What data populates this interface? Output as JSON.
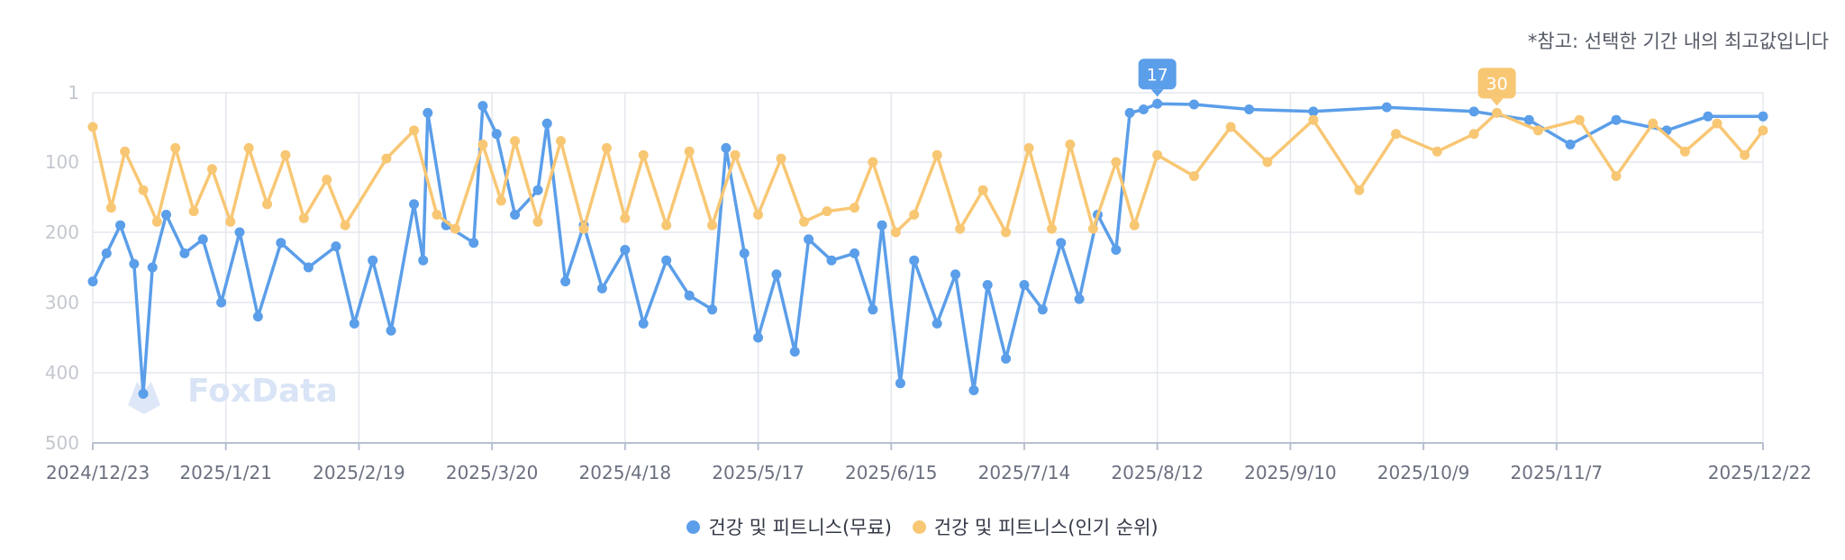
{
  "note": "*참고: 선택한 기간 내의 최고값입니다",
  "watermark": "FoxData",
  "colors": {
    "free": "#5b9ee9",
    "popular": "#f8c774",
    "grid": "#e4e7ed",
    "axis": "#b8c0d0"
  },
  "legend": {
    "free": "건강 및 피트니스(무료)",
    "popular": "건강 및 피트니스(인기 순위)"
  },
  "chart_data": {
    "type": "line",
    "y_axis": {
      "reversed": true,
      "range": [
        1,
        500
      ],
      "ticks": [
        "1",
        "100",
        "200",
        "300",
        "400",
        "500"
      ]
    },
    "x_labels": [
      "2024/12/23",
      "2025/1/21",
      "2025/2/19",
      "2025/3/20",
      "2025/4/18",
      "2025/5/17",
      "2025/6/15",
      "2025/7/14",
      "2025/8/12",
      "2025/9/10",
      "2025/10/9",
      "2025/11/7",
      "2025/12/22"
    ],
    "grid": true,
    "legend_position": "bottom",
    "peak_labels": [
      {
        "series": "free",
        "value": "17",
        "date": "2025/8/12"
      },
      {
        "series": "popular",
        "value": "30",
        "date": "2025/10/25"
      }
    ],
    "series": [
      {
        "name": "건강 및 피트니스(무료)",
        "color": "#5b9ee9",
        "keypoints": [
          [
            "2024/12/23",
            270
          ],
          [
            "2024/12/26",
            230
          ],
          [
            "2024/12/29",
            190
          ],
          [
            "2025/1/1",
            245
          ],
          [
            "2025/1/3",
            430
          ],
          [
            "2025/1/5",
            250
          ],
          [
            "2025/1/8",
            175
          ],
          [
            "2025/1/12",
            230
          ],
          [
            "2025/1/16",
            210
          ],
          [
            "2025/1/20",
            300
          ],
          [
            "2025/1/24",
            200
          ],
          [
            "2025/1/28",
            320
          ],
          [
            "2025/2/2",
            215
          ],
          [
            "2025/2/8",
            250
          ],
          [
            "2025/2/14",
            220
          ],
          [
            "2025/2/18",
            330
          ],
          [
            "2025/2/22",
            240
          ],
          [
            "2025/2/26",
            340
          ],
          [
            "2025/3/3",
            160
          ],
          [
            "2025/3/5",
            240
          ],
          [
            "2025/3/6",
            30
          ],
          [
            "2025/3/10",
            190
          ],
          [
            "2025/3/16",
            215
          ],
          [
            "2025/3/18",
            20
          ],
          [
            "2025/3/21",
            60
          ],
          [
            "2025/3/25",
            175
          ],
          [
            "2025/3/30",
            140
          ],
          [
            "2025/4/1",
            45
          ],
          [
            "2025/4/5",
            270
          ],
          [
            "2025/4/9",
            190
          ],
          [
            "2025/4/13",
            280
          ],
          [
            "2025/4/18",
            225
          ],
          [
            "2025/4/22",
            330
          ],
          [
            "2025/4/27",
            240
          ],
          [
            "2025/5/2",
            290
          ],
          [
            "2025/5/7",
            310
          ],
          [
            "2025/5/10",
            80
          ],
          [
            "2025/5/14",
            230
          ],
          [
            "2025/5/17",
            350
          ],
          [
            "2025/5/21",
            260
          ],
          [
            "2025/5/25",
            370
          ],
          [
            "2025/5/28",
            210
          ],
          [
            "2025/6/2",
            240
          ],
          [
            "2025/6/7",
            230
          ],
          [
            "2025/6/11",
            310
          ],
          [
            "2025/6/13",
            190
          ],
          [
            "2025/6/17",
            415
          ],
          [
            "2025/6/20",
            240
          ],
          [
            "2025/6/25",
            330
          ],
          [
            "2025/6/29",
            260
          ],
          [
            "2025/7/3",
            425
          ],
          [
            "2025/7/6",
            275
          ],
          [
            "2025/7/10",
            380
          ],
          [
            "2025/7/14",
            275
          ],
          [
            "2025/7/18",
            310
          ],
          [
            "2025/7/22",
            215
          ],
          [
            "2025/7/26",
            295
          ],
          [
            "2025/7/30",
            175
          ],
          [
            "2025/8/3",
            225
          ],
          [
            "2025/8/6",
            30
          ],
          [
            "2025/8/9",
            25
          ],
          [
            "2025/8/12",
            17
          ],
          [
            "2025/8/20",
            18
          ],
          [
            "2025/9/1",
            25
          ],
          [
            "2025/9/15",
            28
          ],
          [
            "2025/10/1",
            22
          ],
          [
            "2025/10/20",
            28
          ],
          [
            "2025/11/1",
            40
          ],
          [
            "2025/11/10",
            75
          ],
          [
            "2025/11/20",
            40
          ],
          [
            "2025/12/1",
            55
          ],
          [
            "2025/12/10",
            35
          ],
          [
            "2025/12/22",
            35
          ]
        ]
      },
      {
        "name": "건강 및 피트니스(인기 순위)",
        "color": "#f8c774",
        "keypoints": [
          [
            "2024/12/23",
            50
          ],
          [
            "2024/12/27",
            165
          ],
          [
            "2024/12/30",
            85
          ],
          [
            "2025/1/3",
            140
          ],
          [
            "2025/1/6",
            185
          ],
          [
            "2025/1/10",
            80
          ],
          [
            "2025/1/14",
            170
          ],
          [
            "2025/1/18",
            110
          ],
          [
            "2025/1/22",
            185
          ],
          [
            "2025/1/26",
            80
          ],
          [
            "2025/1/30",
            160
          ],
          [
            "2025/2/3",
            90
          ],
          [
            "2025/2/7",
            180
          ],
          [
            "2025/2/12",
            125
          ],
          [
            "2025/2/16",
            190
          ],
          [
            "2025/2/25",
            95
          ],
          [
            "2025/3/3",
            55
          ],
          [
            "2025/3/8",
            175
          ],
          [
            "2025/3/12",
            195
          ],
          [
            "2025/3/18",
            75
          ],
          [
            "2025/3/22",
            155
          ],
          [
            "2025/3/25",
            70
          ],
          [
            "2025/3/30",
            185
          ],
          [
            "2025/4/4",
            70
          ],
          [
            "2025/4/9",
            195
          ],
          [
            "2025/4/14",
            80
          ],
          [
            "2025/4/18",
            180
          ],
          [
            "2025/4/22",
            90
          ],
          [
            "2025/4/27",
            190
          ],
          [
            "2025/5/2",
            85
          ],
          [
            "2025/5/7",
            190
          ],
          [
            "2025/5/12",
            90
          ],
          [
            "2025/5/17",
            175
          ],
          [
            "2025/5/22",
            95
          ],
          [
            "2025/5/27",
            185
          ],
          [
            "2025/6/1",
            170
          ],
          [
            "2025/6/7",
            165
          ],
          [
            "2025/6/11",
            100
          ],
          [
            "2025/6/16",
            200
          ],
          [
            "2025/6/20",
            175
          ],
          [
            "2025/6/25",
            90
          ],
          [
            "2025/6/30",
            195
          ],
          [
            "2025/7/5",
            140
          ],
          [
            "2025/7/10",
            200
          ],
          [
            "2025/7/15",
            80
          ],
          [
            "2025/7/20",
            195
          ],
          [
            "2025/7/24",
            75
          ],
          [
            "2025/7/29",
            195
          ],
          [
            "2025/8/3",
            100
          ],
          [
            "2025/8/7",
            190
          ],
          [
            "2025/8/12",
            90
          ],
          [
            "2025/8/20",
            120
          ],
          [
            "2025/8/28",
            50
          ],
          [
            "2025/9/5",
            100
          ],
          [
            "2025/9/15",
            40
          ],
          [
            "2025/9/25",
            140
          ],
          [
            "2025/10/3",
            60
          ],
          [
            "2025/10/12",
            85
          ],
          [
            "2025/10/20",
            60
          ],
          [
            "2025/10/25",
            30
          ],
          [
            "2025/11/3",
            55
          ],
          [
            "2025/11/12",
            40
          ],
          [
            "2025/11/20",
            120
          ],
          [
            "2025/11/28",
            45
          ],
          [
            "2025/12/5",
            85
          ],
          [
            "2025/12/12",
            45
          ],
          [
            "2025/12/18",
            90
          ],
          [
            "2025/12/22",
            55
          ]
        ]
      }
    ]
  }
}
